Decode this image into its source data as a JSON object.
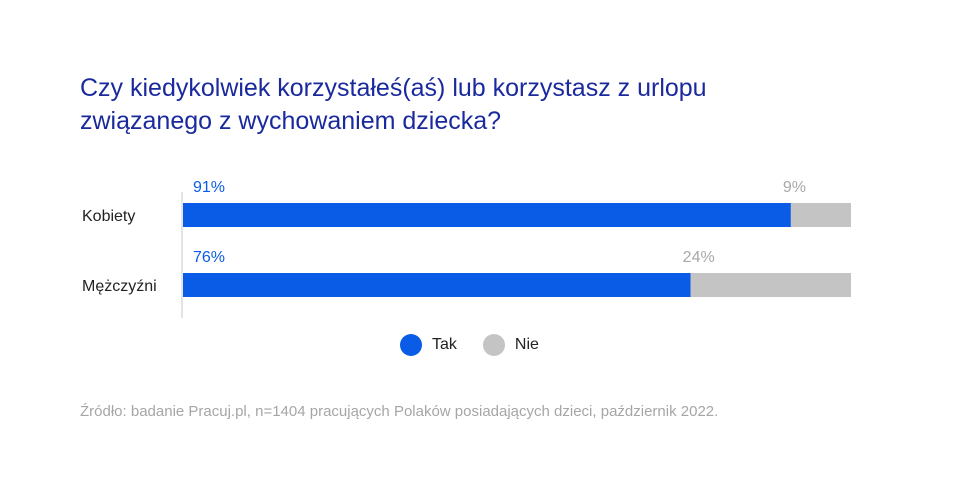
{
  "title_lines": [
    "Czy kiedykolwiek korzystałeś(aś) lub korzystasz z urlopu",
    "związanego z wychowaniem dziecka?"
  ],
  "source": "Źródło: badanie Pracuj.pl, n=1404 pracujących Polaków posiadających dzieci, październik 2022.",
  "colors": {
    "tak": "#0a5ce6",
    "nie": "#c4c4c4",
    "title": "#1a2a9e"
  },
  "chart_data": {
    "type": "bar",
    "orientation": "horizontal",
    "stacked": true,
    "categories": [
      "Kobiety",
      "Mężczyźni"
    ],
    "series": [
      {
        "name": "Tak",
        "values": [
          91,
          76
        ],
        "labels": [
          "91%",
          "76%"
        ]
      },
      {
        "name": "Nie",
        "values": [
          9,
          24
        ],
        "labels": [
          "9%",
          "24%"
        ]
      }
    ],
    "xlim": [
      0,
      100
    ],
    "grid": false,
    "legend": "bottom"
  }
}
